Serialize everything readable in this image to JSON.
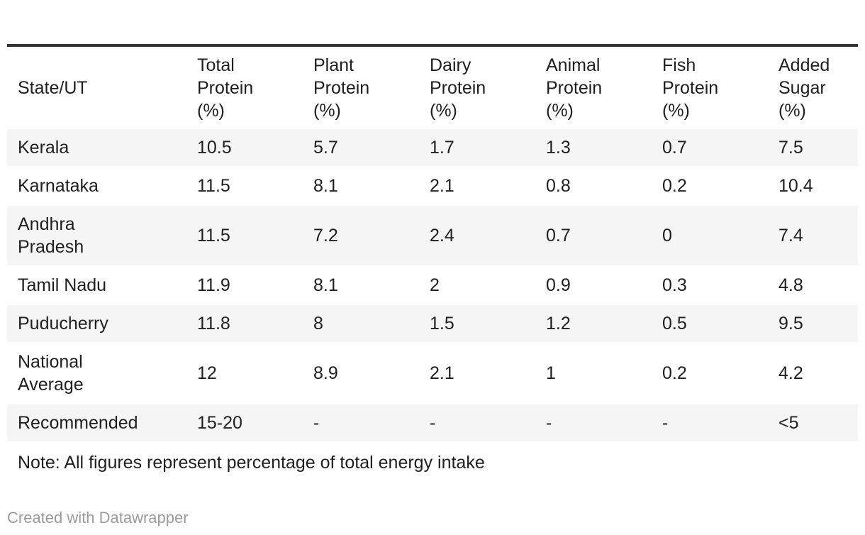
{
  "chart_data": {
    "type": "table",
    "columns": [
      "State/UT",
      "Total\nProtein\n(%)",
      "Plant\nProtein\n(%)",
      "Dairy\nProtein\n(%)",
      "Animal\nProtein\n(%)",
      "Fish\nProtein\n(%)",
      "Added\nSugar\n(%)"
    ],
    "rows": [
      [
        "Kerala",
        "10.5",
        "5.7",
        "1.7",
        "1.3",
        "0.7",
        "7.5"
      ],
      [
        "Karnataka",
        "11.5",
        "8.1",
        "2.1",
        "0.8",
        "0.2",
        "10.4"
      ],
      [
        "Andhra\nPradesh",
        "11.5",
        "7.2",
        "2.4",
        "0.7",
        "0",
        "7.4"
      ],
      [
        "Tamil Nadu",
        "11.9",
        "8.1",
        "2",
        "0.9",
        "0.3",
        "4.8"
      ],
      [
        "Puducherry",
        "11.8",
        "8",
        "1.5",
        "1.2",
        "0.5",
        "9.5"
      ],
      [
        "National\nAverage",
        "12",
        "8.9",
        "2.1",
        "1",
        "0.2",
        "4.2"
      ],
      [
        "Recommended",
        "15-20",
        "-",
        "-",
        "-",
        "-",
        "<5"
      ]
    ],
    "note": "Note: All figures represent percentage of total energy intake",
    "layout_hints": {
      "striped_rows": "odd",
      "header_border_top": true
    }
  },
  "footer": {
    "attribution": "Created with Datawrapper"
  },
  "colors": {
    "accent_border": "#333333",
    "stripe": "#f5f5f5",
    "text": "#1f1f1f",
    "muted": "#9b9b9b",
    "background": "#ffffff"
  }
}
